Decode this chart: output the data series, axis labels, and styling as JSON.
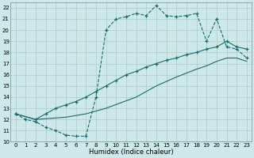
{
  "xlabel": "Humidex (Indice chaleur)",
  "bg_color": "#cce8e8",
  "grid_color": "#b0c8c8",
  "line_color": "#1a6b6b",
  "xlim": [
    -0.5,
    23.5
  ],
  "ylim": [
    10,
    22.5
  ],
  "xticks": [
    0,
    1,
    2,
    3,
    4,
    5,
    6,
    7,
    8,
    9,
    10,
    11,
    12,
    13,
    14,
    15,
    16,
    17,
    18,
    19,
    20,
    21,
    22,
    23
  ],
  "yticks": [
    10,
    11,
    12,
    13,
    14,
    15,
    16,
    17,
    18,
    19,
    20,
    21,
    22
  ],
  "line1_x": [
    0,
    1,
    2,
    3,
    4,
    5,
    6,
    7,
    8,
    9,
    10,
    11,
    12,
    13,
    14,
    15,
    16,
    17,
    18,
    19,
    20,
    21,
    22,
    23
  ],
  "line1_y": [
    12.5,
    12.0,
    11.8,
    11.3,
    11.0,
    10.6,
    10.5,
    10.5,
    14.0,
    20.0,
    21.0,
    21.2,
    21.5,
    21.3,
    22.2,
    21.3,
    21.2,
    21.3,
    21.5,
    19.0,
    21.0,
    18.5,
    18.3,
    17.5
  ],
  "line2_x": [
    0,
    2,
    3,
    4,
    5,
    6,
    7,
    8,
    9,
    10,
    11,
    12,
    13,
    14,
    15,
    16,
    17,
    18,
    19,
    20,
    21,
    22,
    23
  ],
  "line2_y": [
    12.5,
    12.0,
    12.5,
    13.0,
    13.3,
    13.6,
    14.0,
    14.5,
    15.0,
    15.5,
    16.0,
    16.3,
    16.7,
    17.0,
    17.3,
    17.5,
    17.8,
    18.0,
    18.3,
    18.5,
    19.0,
    18.5,
    18.3
  ],
  "line3_x": [
    0,
    2,
    5,
    7,
    9,
    12,
    14,
    16,
    18,
    19,
    20,
    21,
    22,
    23
  ],
  "line3_y": [
    12.5,
    12.0,
    12.2,
    12.5,
    13.0,
    14.0,
    15.0,
    15.8,
    16.5,
    16.8,
    17.2,
    17.5,
    17.5,
    17.2
  ]
}
